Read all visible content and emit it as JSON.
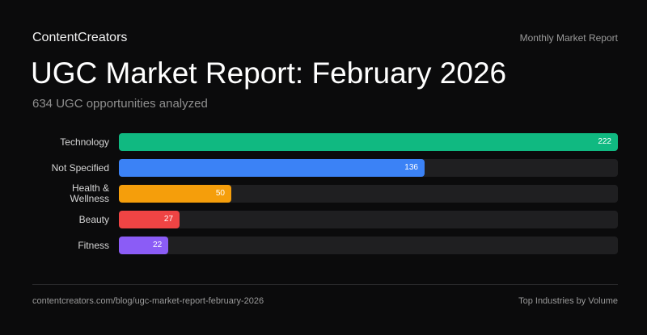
{
  "header": {
    "brand": "ContentCreators",
    "report_type": "Monthly Market Report",
    "title": "UGC Market Report: February 2026",
    "subtitle": "634 UGC opportunities analyzed"
  },
  "chart_data": {
    "type": "bar",
    "orientation": "horizontal",
    "categories": [
      "Technology",
      "Not Specified",
      "Health & Wellness",
      "Beauty",
      "Fitness"
    ],
    "values": [
      222,
      136,
      50,
      27,
      22
    ],
    "colors": [
      "#10b981",
      "#3b82f6",
      "#f59e0b",
      "#ef4444",
      "#8b5cf6"
    ],
    "xlim": [
      0,
      222
    ],
    "grid": false,
    "legend": "none",
    "title": "",
    "xlabel": "",
    "ylabel": ""
  },
  "footer": {
    "url": "contentcreators.com/blog/ugc-market-report-february-2026",
    "caption": "Top Industries by Volume"
  }
}
